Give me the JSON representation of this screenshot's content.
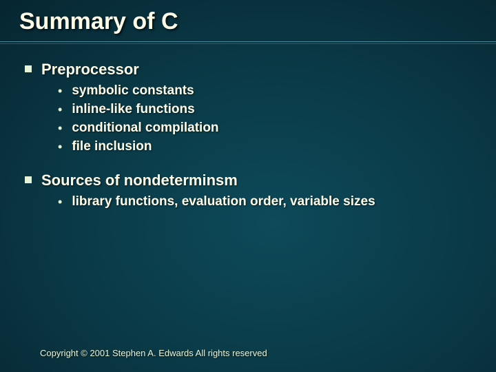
{
  "slide": {
    "title": "Summary of C",
    "title_fontsize": 34,
    "title_color": "#fdfde8",
    "background_gradient": {
      "type": "radial",
      "center": "55% 60%",
      "stops": [
        "#0d4a5a",
        "#0a3845",
        "#062530",
        "#031218"
      ]
    },
    "underline_colors": [
      "#4a8a9a",
      "#2a5a6a"
    ],
    "bullet_square_color": "#e8f4d8",
    "text_color": "#fdfde8",
    "section_fontsize": 22,
    "sub_fontsize": 19,
    "sections": [
      {
        "label": "Preprocessor",
        "items": [
          "symbolic constants",
          "inline-like functions",
          "conditional compilation",
          "file inclusion"
        ]
      },
      {
        "label": "Sources of nondeterminsm",
        "items": [
          "library functions, evaluation order, variable sizes"
        ]
      }
    ],
    "footer": "Copyright © 2001 Stephen A. Edwards  All rights reserved"
  }
}
